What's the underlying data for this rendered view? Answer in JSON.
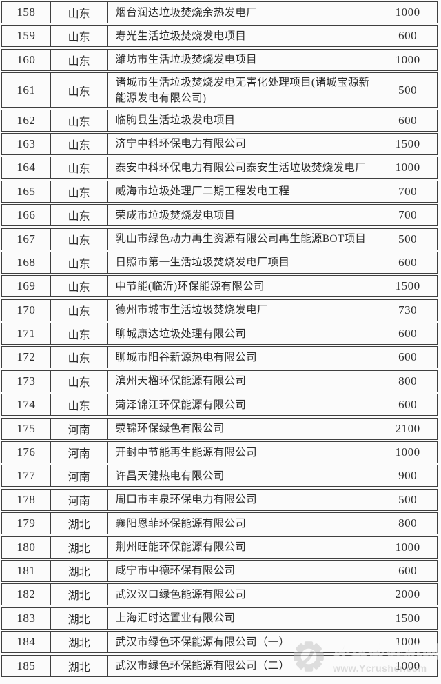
{
  "table": {
    "rows": [
      {
        "no": "158",
        "province": "山东",
        "name": "烟台润达垃圾焚烧余热发电厂",
        "value": "1000"
      },
      {
        "no": "159",
        "province": "山东",
        "name": "寿光生活垃圾焚烧发电项目",
        "value": "600"
      },
      {
        "no": "160",
        "province": "山东",
        "name": "潍坊市生活垃圾焚烧发电项目",
        "value": "1000"
      },
      {
        "no": "161",
        "province": "山东",
        "name": "诸城市生活垃圾焚烧发电无害化处理项目(诸城宝源新能源发电有限公司)",
        "value": "500"
      },
      {
        "no": "162",
        "province": "山东",
        "name": "临朐县生活垃圾发电项目",
        "value": "600"
      },
      {
        "no": "163",
        "province": "山东",
        "name": "济宁中科环保电力有限公司",
        "value": "1500"
      },
      {
        "no": "164",
        "province": "山东",
        "name": "泰安中科环保电力有限公司泰安生活垃圾焚烧发电厂",
        "value": "1000"
      },
      {
        "no": "165",
        "province": "山东",
        "name": "威海市垃圾处理厂二期工程发电工程",
        "value": "700"
      },
      {
        "no": "166",
        "province": "山东",
        "name": "荣成市垃圾焚烧发电项目",
        "value": "700"
      },
      {
        "no": "167",
        "province": "山东",
        "name": "乳山市绿色动力再生资源有限公司再生能源BOT项目",
        "value": "500"
      },
      {
        "no": "168",
        "province": "山东",
        "name": "日照市第一生活垃圾焚烧发电厂项目",
        "value": "600"
      },
      {
        "no": "169",
        "province": "山东",
        "name": "中节能(临沂)环保能源有限公司",
        "value": "1500"
      },
      {
        "no": "170",
        "province": "山东",
        "name": "德州市城市生活垃圾焚烧发电厂",
        "value": "730"
      },
      {
        "no": "171",
        "province": "山东",
        "name": "聊城康达垃圾处理有限公司",
        "value": "600"
      },
      {
        "no": "172",
        "province": "山东",
        "name": "聊城市阳谷新源热电有限公司",
        "value": "600"
      },
      {
        "no": "173",
        "province": "山东",
        "name": "滨州天楹环保能源有限公司",
        "value": "800"
      },
      {
        "no": "174",
        "province": "山东",
        "name": "菏泽锦江环保能源有限公司",
        "value": "600"
      },
      {
        "no": "175",
        "province": "河南",
        "name": "荥锦环保绿色有限公司",
        "value": "2100"
      },
      {
        "no": "176",
        "province": "河南",
        "name": "开封中节能再生能源有限公司",
        "value": "1000"
      },
      {
        "no": "177",
        "province": "河南",
        "name": "许昌天健热电有限公司",
        "value": "900"
      },
      {
        "no": "178",
        "province": "河南",
        "name": "周口市丰泉环保电力有限公司",
        "value": "500"
      },
      {
        "no": "179",
        "province": "湖北",
        "name": "襄阳恩菲环保能源有限公司",
        "value": "800"
      },
      {
        "no": "180",
        "province": "湖北",
        "name": "荆州旺能环保能源有限公司",
        "value": "1000"
      },
      {
        "no": "181",
        "province": "湖北",
        "name": "咸宁市中德环保有限公司",
        "value": "600"
      },
      {
        "no": "182",
        "province": "湖北",
        "name": "武汉汉口绿色能源有限公司",
        "value": "2000"
      },
      {
        "no": "183",
        "province": "湖北",
        "name": "上海汇时达置业有限公司",
        "value": "1500"
      },
      {
        "no": "184",
        "province": "湖北",
        "name": "武汉市绿色环保能源有限公司（一）",
        "value": "1000"
      },
      {
        "no": "185",
        "province": "湖北",
        "name": "武汉市绿色环保能源有限公司（二）",
        "value": "1000"
      }
    ]
  },
  "watermark": {
    "site_name": "环球破碎机网",
    "site_url": "www.Ycrusher.com",
    "color": "#bdbdbd"
  },
  "colors": {
    "border": "#3f3f3f",
    "text": "#2d2d2d",
    "background": "#fbfbfb"
  }
}
